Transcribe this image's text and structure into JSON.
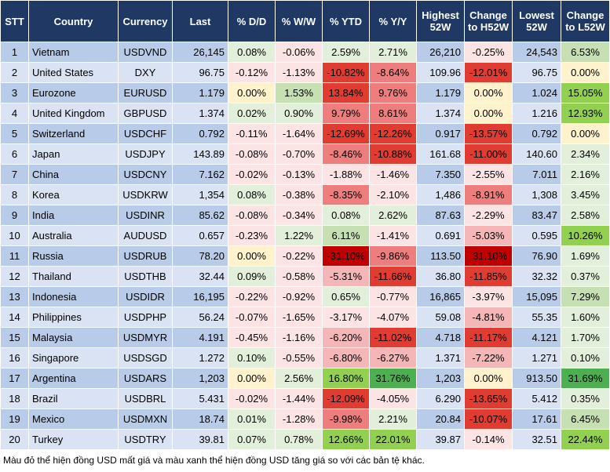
{
  "table": {
    "headers": [
      "STT",
      "Country",
      "Currency",
      "Last",
      "% D/D",
      "% W/W",
      "% YTD",
      "% Y/Y",
      "Highest 52W",
      "Change to H52W",
      "Lowest 52W",
      "Change to L52W"
    ],
    "rows": [
      [
        "1",
        "Vietnam",
        "USDVND",
        "26,145",
        "0.08%",
        "-0.06%",
        "2.59%",
        "2.71%",
        "26,210",
        "-0.25%",
        "24,543",
        "6.53%"
      ],
      [
        "2",
        "United States",
        "DXY",
        "96.75",
        "-0.12%",
        "-1.13%",
        "-10.82%",
        "-8.64%",
        "109.96",
        "-12.01%",
        "96.75",
        "0.00%"
      ],
      [
        "3",
        "Eurozone",
        "EURUSD",
        "1.179",
        "0.00%",
        "1.53%",
        "13.84%",
        "9.76%",
        "1.179",
        "0.00%",
        "1.024",
        "15.05%"
      ],
      [
        "4",
        "United Kingdom",
        "GBPUSD",
        "1.374",
        "0.02%",
        "0.90%",
        "9.79%",
        "8.61%",
        "1.374",
        "0.00%",
        "1.216",
        "12.93%"
      ],
      [
        "5",
        "Switzerland",
        "USDCHF",
        "0.792",
        "-0.11%",
        "-1.64%",
        "-12.69%",
        "-12.26%",
        "0.917",
        "-13.57%",
        "0.792",
        "0.00%"
      ],
      [
        "6",
        "Japan",
        "USDJPY",
        "143.89",
        "-0.08%",
        "-0.70%",
        "-8.46%",
        "-10.88%",
        "161.68",
        "-11.00%",
        "140.60",
        "2.34%"
      ],
      [
        "7",
        "China",
        "USDCNY",
        "7.162",
        "-0.02%",
        "-0.13%",
        "-1.88%",
        "-1.46%",
        "7.350",
        "-2.55%",
        "7.011",
        "2.16%"
      ],
      [
        "8",
        "Korea",
        "USDKRW",
        "1,354",
        "0.08%",
        "-0.38%",
        "-8.35%",
        "-2.10%",
        "1,486",
        "-8.91%",
        "1,308",
        "3.45%"
      ],
      [
        "9",
        "India",
        "USDINR",
        "85.62",
        "-0.08%",
        "-0.34%",
        "0.08%",
        "2.62%",
        "87.63",
        "-2.29%",
        "83.47",
        "2.58%"
      ],
      [
        "10",
        "Australia",
        "AUDUSD",
        "0.657",
        "-0.23%",
        "1.22%",
        "6.11%",
        "-1.41%",
        "0.691",
        "-5.03%",
        "0.595",
        "10.26%"
      ],
      [
        "11",
        "Russia",
        "USDRUB",
        "78.20",
        "0.00%",
        "-0.22%",
        "-31.10%",
        "-9.86%",
        "113.50",
        "-31.10%",
        "76.90",
        "1.69%"
      ],
      [
        "12",
        "Thailand",
        "USDTHB",
        "32.44",
        "0.09%",
        "-0.58%",
        "-5.31%",
        "-11.66%",
        "36.80",
        "-11.85%",
        "32.32",
        "0.37%"
      ],
      [
        "13",
        "Indonesia",
        "USDIDR",
        "16,195",
        "-0.22%",
        "-0.92%",
        "0.65%",
        "-0.77%",
        "16,865",
        "-3.97%",
        "15,095",
        "7.29%"
      ],
      [
        "14",
        "Philippines",
        "USDPHP",
        "56.24",
        "-0.07%",
        "-1.65%",
        "-3.17%",
        "-4.07%",
        "59.08",
        "-4.81%",
        "55.35",
        "1.60%"
      ],
      [
        "15",
        "Malaysia",
        "USDMYR",
        "4.191",
        "-0.45%",
        "-1.16%",
        "-6.20%",
        "-11.02%",
        "4.718",
        "-11.17%",
        "4.121",
        "1.70%"
      ],
      [
        "16",
        "Singapore",
        "USDSGD",
        "1.272",
        "0.10%",
        "-0.55%",
        "-6.80%",
        "-6.27%",
        "1.371",
        "-7.22%",
        "1.271",
        "0.10%"
      ],
      [
        "17",
        "Argentina",
        "USDARS",
        "1,203",
        "0.00%",
        "2.56%",
        "16.80%",
        "31.76%",
        "1,203",
        "0.00%",
        "913.50",
        "31.69%"
      ],
      [
        "18",
        "Brazil",
        "USDBRL",
        "5.431",
        "-0.02%",
        "-1.44%",
        "-12.09%",
        "-4.05%",
        "6.290",
        "-13.65%",
        "5.412",
        "0.35%"
      ],
      [
        "19",
        "Mexico",
        "USDMXN",
        "18.74",
        "0.01%",
        "-1.28%",
        "-9.98%",
        "2.21%",
        "20.84",
        "-10.07%",
        "17.61",
        "6.45%"
      ],
      [
        "20",
        "Turkey",
        "USDTRY",
        "39.81",
        "0.07%",
        "0.78%",
        "12.66%",
        "22.01%",
        "39.87",
        "-0.14%",
        "32.51",
        "22.44%"
      ]
    ],
    "cell_colors": [
      [
        "#e2efda",
        "#fce4e4",
        "#e2efda",
        "#e2efda",
        "#fce4e4",
        "#c6e0b4"
      ],
      [
        "#fce4e4",
        "#fce4e4",
        "#e03c31",
        "#ee7d7d",
        "#e03c31",
        "#fff2cc"
      ],
      [
        "#fff2cc",
        "#c6e0b4",
        "#e03c31",
        "#ee7d7d",
        "#fff2cc",
        "#92d050"
      ],
      [
        "#e2efda",
        "#e2efda",
        "#ee7d7d",
        "#ee7d7d",
        "#fff2cc",
        "#92d050"
      ],
      [
        "#fce4e4",
        "#fce4e4",
        "#e03c31",
        "#e03c31",
        "#e03c31",
        "#fff2cc"
      ],
      [
        "#fce4e4",
        "#fce4e4",
        "#ee7d7d",
        "#e03c31",
        "#e03c31",
        "#e2efda"
      ],
      [
        "#fce4e4",
        "#fce4e4",
        "#fce4e4",
        "#fce4e4",
        "#fce4e4",
        "#e2efda"
      ],
      [
        "#e2efda",
        "#fce4e4",
        "#ee7d7d",
        "#fce4e4",
        "#ee7d7d",
        "#e2efda"
      ],
      [
        "#fce4e4",
        "#fce4e4",
        "#e2efda",
        "#e2efda",
        "#fce4e4",
        "#e2efda"
      ],
      [
        "#fce4e4",
        "#e2efda",
        "#c6e0b4",
        "#fce4e4",
        "#f4b6b6",
        "#92d050"
      ],
      [
        "#fff2cc",
        "#fce4e4",
        "#c00000",
        "#ee7d7d",
        "#c00000",
        "#e2efda"
      ],
      [
        "#e2efda",
        "#fce4e4",
        "#f4b6b6",
        "#e03c31",
        "#e03c31",
        "#e2efda"
      ],
      [
        "#fce4e4",
        "#fce4e4",
        "#e2efda",
        "#fce4e4",
        "#fce4e4",
        "#c6e0b4"
      ],
      [
        "#fce4e4",
        "#fce4e4",
        "#fce4e4",
        "#fce4e4",
        "#f4b6b6",
        "#e2efda"
      ],
      [
        "#fce4e4",
        "#fce4e4",
        "#f4b6b6",
        "#e03c31",
        "#e03c31",
        "#e2efda"
      ],
      [
        "#e2efda",
        "#fce4e4",
        "#f4b6b6",
        "#f4b6b6",
        "#f4b6b6",
        "#e2efda"
      ],
      [
        "#fff2cc",
        "#e2efda",
        "#92d050",
        "#4caf50",
        "#fff2cc",
        "#4caf50"
      ],
      [
        "#fce4e4",
        "#fce4e4",
        "#e03c31",
        "#fce4e4",
        "#e03c31",
        "#e2efda"
      ],
      [
        "#e2efda",
        "#fce4e4",
        "#ee7d7d",
        "#e2efda",
        "#e03c31",
        "#c6e0b4"
      ],
      [
        "#e2efda",
        "#e2efda",
        "#92d050",
        "#92d050",
        "#fce4e4",
        "#92d050"
      ]
    ]
  },
  "caption": "Màu đỏ thể hiện đồng USD mất giá và màu xanh thể hiện đồng USD tăng giá so với các bản tệ khác."
}
